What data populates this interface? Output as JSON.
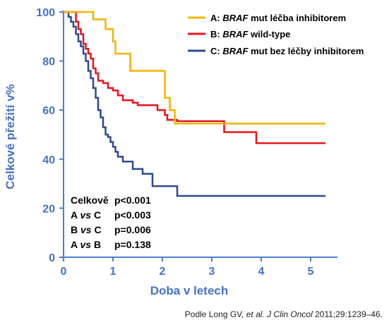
{
  "chart_data": {
    "type": "line",
    "title": "",
    "xlabel": "Doba v letech",
    "ylabel": "Celkové přežití v%",
    "xlim": [
      0,
      5.4
    ],
    "ylim": [
      0,
      100
    ],
    "x_ticks": [
      "0",
      "1",
      "2",
      "3",
      "4",
      "5"
    ],
    "y_ticks": [
      "0",
      "20",
      "40",
      "60",
      "80",
      "100"
    ],
    "grid": false,
    "legend_position": "top-right",
    "series": [
      {
        "name": "A: BRAF mut léčba inhibitorem",
        "color": "#F5B400",
        "x": [
          0,
          0.6,
          0.6,
          0.85,
          0.85,
          1.0,
          1.0,
          1.05,
          1.05,
          1.35,
          1.35,
          2.05,
          2.05,
          2.15,
          2.15,
          2.25,
          2.25,
          5.3
        ],
        "y": [
          100,
          100,
          97,
          97,
          93,
          93,
          88,
          88,
          83,
          83,
          76,
          76,
          65,
          65,
          60,
          60,
          54.5,
          54.5
        ]
      },
      {
        "name": "B: BRAF wild-type",
        "color": "#E8141C",
        "x": [
          0,
          0.25,
          0.3,
          0.35,
          0.4,
          0.45,
          0.5,
          0.55,
          0.6,
          0.65,
          0.7,
          0.8,
          0.9,
          1.0,
          1.1,
          1.2,
          1.4,
          1.5,
          1.9,
          2.05,
          2.1,
          2.3,
          3.2,
          3.25,
          3.85,
          3.9,
          5.3
        ],
        "y": [
          100,
          96,
          93,
          91,
          87,
          85,
          83,
          81,
          77,
          75,
          72,
          71,
          69,
          68,
          66,
          64,
          63,
          62,
          60,
          58,
          56,
          55.5,
          55.5,
          51,
          51,
          46.5,
          46.5
        ],
        "step": true
      },
      {
        "name": "C: BRAF mut bez léčby inhibitorem",
        "color": "#2E4A8E",
        "x": [
          0,
          0.1,
          0.15,
          0.2,
          0.25,
          0.3,
          0.35,
          0.4,
          0.45,
          0.5,
          0.55,
          0.6,
          0.65,
          0.7,
          0.75,
          0.8,
          0.85,
          0.9,
          0.95,
          1.0,
          1.05,
          1.1,
          1.2,
          1.4,
          1.6,
          1.8,
          2.3,
          5.3
        ],
        "y": [
          100,
          98,
          96,
          94,
          91,
          88,
          86,
          83,
          80,
          76,
          73,
          69,
          65,
          60,
          57,
          53,
          50,
          49,
          47,
          45,
          43,
          41,
          39,
          36,
          34,
          29,
          25,
          25
        ],
        "step": true
      }
    ],
    "annotations": [
      {
        "label": "Celkově",
        "value": "p<0.001"
      },
      {
        "label": "A vs C",
        "value": "p<0.003"
      },
      {
        "label": "B vs C",
        "value": "p=0.006"
      },
      {
        "label": "A vs B",
        "value": "p=0.138"
      }
    ]
  },
  "legend": {
    "a_prefix": "A:  ",
    "a_gene": "BRAF",
    "a_rest": " mut léčba inhibitorem",
    "b_prefix": "B:  ",
    "b_gene": "BRAF",
    "b_rest": " wild-type",
    "c_prefix": "C:  ",
    "c_gene": "BRAF",
    "c_rest": " mut bez léčby inhibitorem"
  },
  "stats": {
    "r1_label": "Celkově",
    "r1_value": "p<0.001",
    "r2_a": "A ",
    "r2_vs": "vs",
    "r2_b": " C",
    "r2_value": "p<0.003",
    "r3_a": "B ",
    "r3_vs": "vs",
    "r3_b": " C",
    "r3_value": "p=0.006",
    "r4_a": "A ",
    "r4_vs": "vs",
    "r4_b": " B",
    "r4_value": "p=0.138"
  },
  "citation": {
    "prefix": "Podle Long GV, ",
    "etal": "et al. J Clin Oncol",
    "suffix": " 2011;29:1239–46."
  },
  "colors": {
    "axis": "#4A7DC8",
    "axis_text": "#4472C4"
  }
}
